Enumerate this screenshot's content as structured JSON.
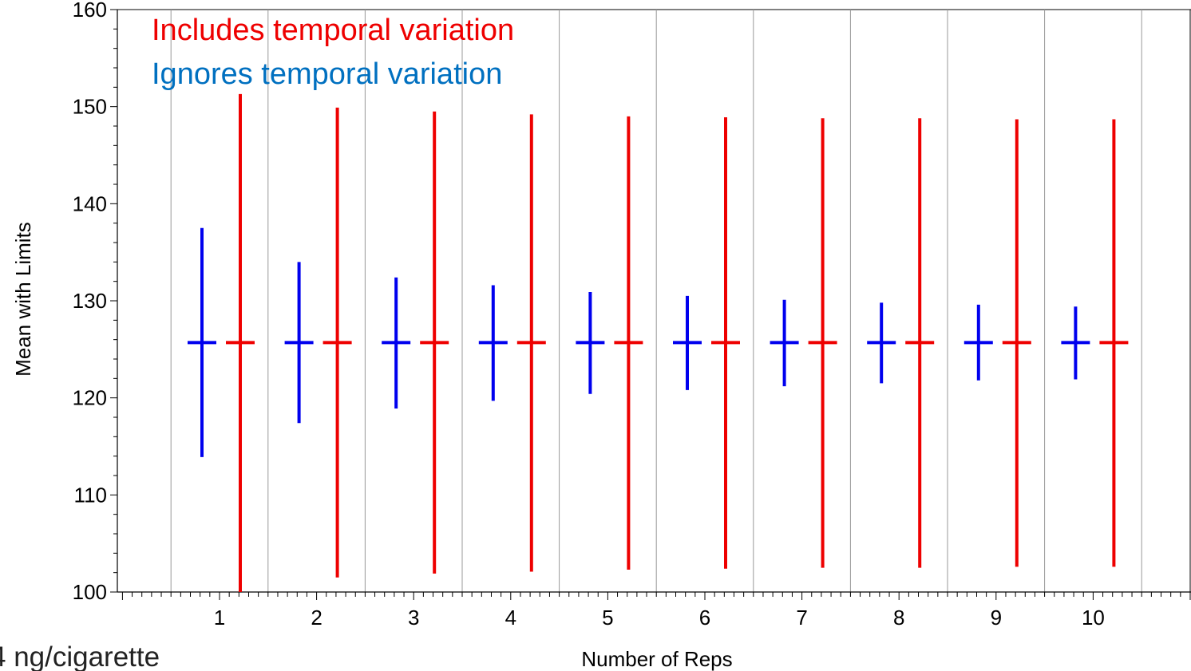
{
  "chart_data": {
    "type": "error-bar",
    "xlabel": "Number of Reps",
    "ylabel": "Mean with Limits",
    "x_categories": [
      "1",
      "2",
      "3",
      "4",
      "5",
      "6",
      "7",
      "8",
      "9",
      "10"
    ],
    "ylim": [
      100,
      160
    ],
    "y_ticks": [
      "100",
      "110",
      "120",
      "130",
      "140",
      "150",
      "160"
    ],
    "grid": "vertical separators between categories",
    "legend_placement": "top-left",
    "series": [
      {
        "name": "Ignores temporal variation",
        "color": "#0000ee",
        "legend_color": "#0070c0",
        "mean": [
          125.7,
          125.7,
          125.7,
          125.7,
          125.7,
          125.7,
          125.7,
          125.7,
          125.7,
          125.7
        ],
        "lower": [
          113.9,
          117.4,
          118.9,
          119.7,
          120.4,
          120.8,
          121.2,
          121.5,
          121.8,
          121.9
        ],
        "upper": [
          137.5,
          134.0,
          132.4,
          131.6,
          130.9,
          130.5,
          130.1,
          129.8,
          129.6,
          129.4
        ]
      },
      {
        "name": "Includes temporal variation",
        "color": "#ee0000",
        "legend_color": "#ee0000",
        "mean": [
          125.7,
          125.7,
          125.7,
          125.7,
          125.7,
          125.7,
          125.7,
          125.7,
          125.7,
          125.7
        ],
        "lower": [
          100.0,
          101.5,
          101.9,
          102.1,
          102.3,
          102.4,
          102.5,
          102.5,
          102.6,
          102.6
        ],
        "upper": [
          151.3,
          149.9,
          149.5,
          149.2,
          149.0,
          148.9,
          148.8,
          148.8,
          148.7,
          148.7
        ]
      }
    ]
  },
  "footnote": "4 ng/cigarette"
}
